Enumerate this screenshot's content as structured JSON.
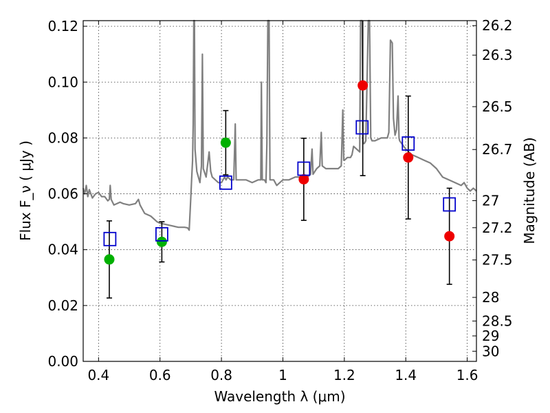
{
  "chart_data": {
    "type": "scatter",
    "xlabel": "Wavelength  λ (μm)",
    "ylabel": "Flux  F_ν  ( μJy )",
    "ylabel_right": "Magnitude (AB)",
    "xlim": [
      0.35,
      1.63
    ],
    "ylim": [
      0.0,
      0.122
    ],
    "grid": true,
    "x_ticks": [
      0.4,
      0.6,
      0.8,
      1.0,
      1.2,
      1.4,
      1.6
    ],
    "x_tick_labels": [
      "0.4",
      "0.6",
      "0.8",
      "1",
      "1.2",
      "1.4",
      "1.6"
    ],
    "y_ticks": [
      0.0,
      0.02,
      0.04,
      0.06,
      0.08,
      0.1,
      0.12
    ],
    "y_tick_labels": [
      "0.00",
      "0.02",
      "0.04",
      "0.06",
      "0.08",
      "0.10",
      "0.12"
    ],
    "right_ticks": [
      {
        "label": "26.2",
        "mag": 26.2
      },
      {
        "label": "26.3",
        "mag": 26.3
      },
      {
        "label": "26.5",
        "mag": 26.5
      },
      {
        "label": "26.7",
        "mag": 26.7
      },
      {
        "label": "27",
        "mag": 27.0
      },
      {
        "label": "27.2",
        "mag": 27.2
      },
      {
        "label": "27.5",
        "mag": 27.5
      },
      {
        "label": "28",
        "mag": 28.0
      },
      {
        "label": "28.5",
        "mag": 28.5
      },
      {
        "label": "29",
        "mag": 29.0
      },
      {
        "label": "30",
        "mag": 30.0
      }
    ],
    "colors": {
      "model": "#808080",
      "green": "#00b000",
      "red": "#ee0000",
      "model_box": "#0000cc",
      "errorbar": "#000000"
    },
    "observations": [
      {
        "x": 0.435,
        "y": 0.0365,
        "err": 0.0138,
        "color": "green"
      },
      {
        "x": 0.606,
        "y": 0.0428,
        "err": 0.0072,
        "color": "green"
      },
      {
        "x": 0.814,
        "y": 0.0783,
        "err": 0.0115,
        "color": "green"
      },
      {
        "x": 1.068,
        "y": 0.0652,
        "err": 0.0147,
        "color": "red"
      },
      {
        "x": 1.26,
        "y": 0.0988,
        "err": 0.0323,
        "color": "red"
      },
      {
        "x": 1.408,
        "y": 0.073,
        "err": 0.022,
        "color": "red"
      },
      {
        "x": 1.542,
        "y": 0.0448,
        "err": 0.0172,
        "color": "red"
      }
    ],
    "model_bands": [
      {
        "x": 0.437,
        "y": 0.0438
      },
      {
        "x": 0.606,
        "y": 0.0455
      },
      {
        "x": 0.814,
        "y": 0.064
      },
      {
        "x": 1.068,
        "y": 0.069
      },
      {
        "x": 1.258,
        "y": 0.0838
      },
      {
        "x": 1.408,
        "y": 0.078
      },
      {
        "x": 1.542,
        "y": 0.0562
      }
    ],
    "model_spectrum": [
      [
        0.35,
        0.062
      ],
      [
        0.355,
        0.06
      ],
      [
        0.36,
        0.063
      ],
      [
        0.365,
        0.059
      ],
      [
        0.37,
        0.0615
      ],
      [
        0.38,
        0.0585
      ],
      [
        0.39,
        0.06
      ],
      [
        0.4,
        0.0605
      ],
      [
        0.41,
        0.059
      ],
      [
        0.42,
        0.059
      ],
      [
        0.43,
        0.0575
      ],
      [
        0.435,
        0.058
      ],
      [
        0.438,
        0.063
      ],
      [
        0.441,
        0.058
      ],
      [
        0.45,
        0.056
      ],
      [
        0.46,
        0.0565
      ],
      [
        0.47,
        0.057
      ],
      [
        0.48,
        0.0565
      ],
      [
        0.5,
        0.056
      ],
      [
        0.52,
        0.0565
      ],
      [
        0.53,
        0.058
      ],
      [
        0.535,
        0.056
      ],
      [
        0.55,
        0.053
      ],
      [
        0.57,
        0.052
      ],
      [
        0.59,
        0.05
      ],
      [
        0.6,
        0.0495
      ],
      [
        0.62,
        0.049
      ],
      [
        0.64,
        0.0485
      ],
      [
        0.66,
        0.048
      ],
      [
        0.68,
        0.048
      ],
      [
        0.69,
        0.0478
      ],
      [
        0.695,
        0.047
      ],
      [
        0.7,
        0.058
      ],
      [
        0.703,
        0.065
      ],
      [
        0.706,
        0.072
      ],
      [
        0.708,
        0.085
      ],
      [
        0.71,
        0.122
      ],
      [
        0.712,
        0.122
      ],
      [
        0.714,
        0.076
      ],
      [
        0.72,
        0.068
      ],
      [
        0.73,
        0.064
      ],
      [
        0.735,
        0.07
      ],
      [
        0.738,
        0.11
      ],
      [
        0.741,
        0.069
      ],
      [
        0.75,
        0.066
      ],
      [
        0.76,
        0.075
      ],
      [
        0.765,
        0.068
      ],
      [
        0.77,
        0.066
      ],
      [
        0.78,
        0.065
      ],
      [
        0.79,
        0.064
      ],
      [
        0.8,
        0.064
      ],
      [
        0.81,
        0.066
      ],
      [
        0.815,
        0.065
      ],
      [
        0.82,
        0.066
      ],
      [
        0.83,
        0.065
      ],
      [
        0.84,
        0.065
      ],
      [
        0.845,
        0.085
      ],
      [
        0.848,
        0.065
      ],
      [
        0.86,
        0.065
      ],
      [
        0.88,
        0.065
      ],
      [
        0.9,
        0.064
      ],
      [
        0.92,
        0.065
      ],
      [
        0.928,
        0.065
      ],
      [
        0.93,
        0.1
      ],
      [
        0.933,
        0.065
      ],
      [
        0.94,
        0.065
      ],
      [
        0.945,
        0.064
      ],
      [
        0.948,
        0.078
      ],
      [
        0.951,
        0.122
      ],
      [
        0.955,
        0.122
      ],
      [
        0.958,
        0.065
      ],
      [
        0.97,
        0.065
      ],
      [
        0.98,
        0.063
      ],
      [
        0.99,
        0.064
      ],
      [
        1.0,
        0.065
      ],
      [
        1.02,
        0.065
      ],
      [
        1.04,
        0.066
      ],
      [
        1.06,
        0.066
      ],
      [
        1.08,
        0.066
      ],
      [
        1.09,
        0.067
      ],
      [
        1.095,
        0.076
      ],
      [
        1.098,
        0.067
      ],
      [
        1.11,
        0.069
      ],
      [
        1.12,
        0.07
      ],
      [
        1.125,
        0.082
      ],
      [
        1.128,
        0.07
      ],
      [
        1.14,
        0.069
      ],
      [
        1.16,
        0.069
      ],
      [
        1.18,
        0.069
      ],
      [
        1.19,
        0.07
      ],
      [
        1.195,
        0.09
      ],
      [
        1.198,
        0.072
      ],
      [
        1.2,
        0.072
      ],
      [
        1.21,
        0.073
      ],
      [
        1.22,
        0.073
      ],
      [
        1.225,
        0.074
      ],
      [
        1.23,
        0.077
      ],
      [
        1.24,
        0.076
      ],
      [
        1.25,
        0.075
      ],
      [
        1.253,
        0.122
      ],
      [
        1.258,
        0.122
      ],
      [
        1.261,
        0.078
      ],
      [
        1.265,
        0.078
      ],
      [
        1.27,
        0.079
      ],
      [
        1.278,
        0.122
      ],
      [
        1.282,
        0.122
      ],
      [
        1.286,
        0.08
      ],
      [
        1.29,
        0.079
      ],
      [
        1.3,
        0.079
      ],
      [
        1.32,
        0.08
      ],
      [
        1.34,
        0.08
      ],
      [
        1.345,
        0.082
      ],
      [
        1.35,
        0.115
      ],
      [
        1.356,
        0.114
      ],
      [
        1.36,
        0.087
      ],
      [
        1.365,
        0.081
      ],
      [
        1.37,
        0.083
      ],
      [
        1.375,
        0.095
      ],
      [
        1.378,
        0.08
      ],
      [
        1.38,
        0.079
      ],
      [
        1.4,
        0.076
      ],
      [
        1.42,
        0.074
      ],
      [
        1.44,
        0.073
      ],
      [
        1.46,
        0.072
      ],
      [
        1.48,
        0.071
      ],
      [
        1.5,
        0.069
      ],
      [
        1.52,
        0.066
      ],
      [
        1.54,
        0.065
      ],
      [
        1.56,
        0.064
      ],
      [
        1.58,
        0.063
      ],
      [
        1.59,
        0.064
      ],
      [
        1.6,
        0.062
      ],
      [
        1.61,
        0.061
      ],
      [
        1.62,
        0.062
      ],
      [
        1.63,
        0.061
      ]
    ]
  }
}
